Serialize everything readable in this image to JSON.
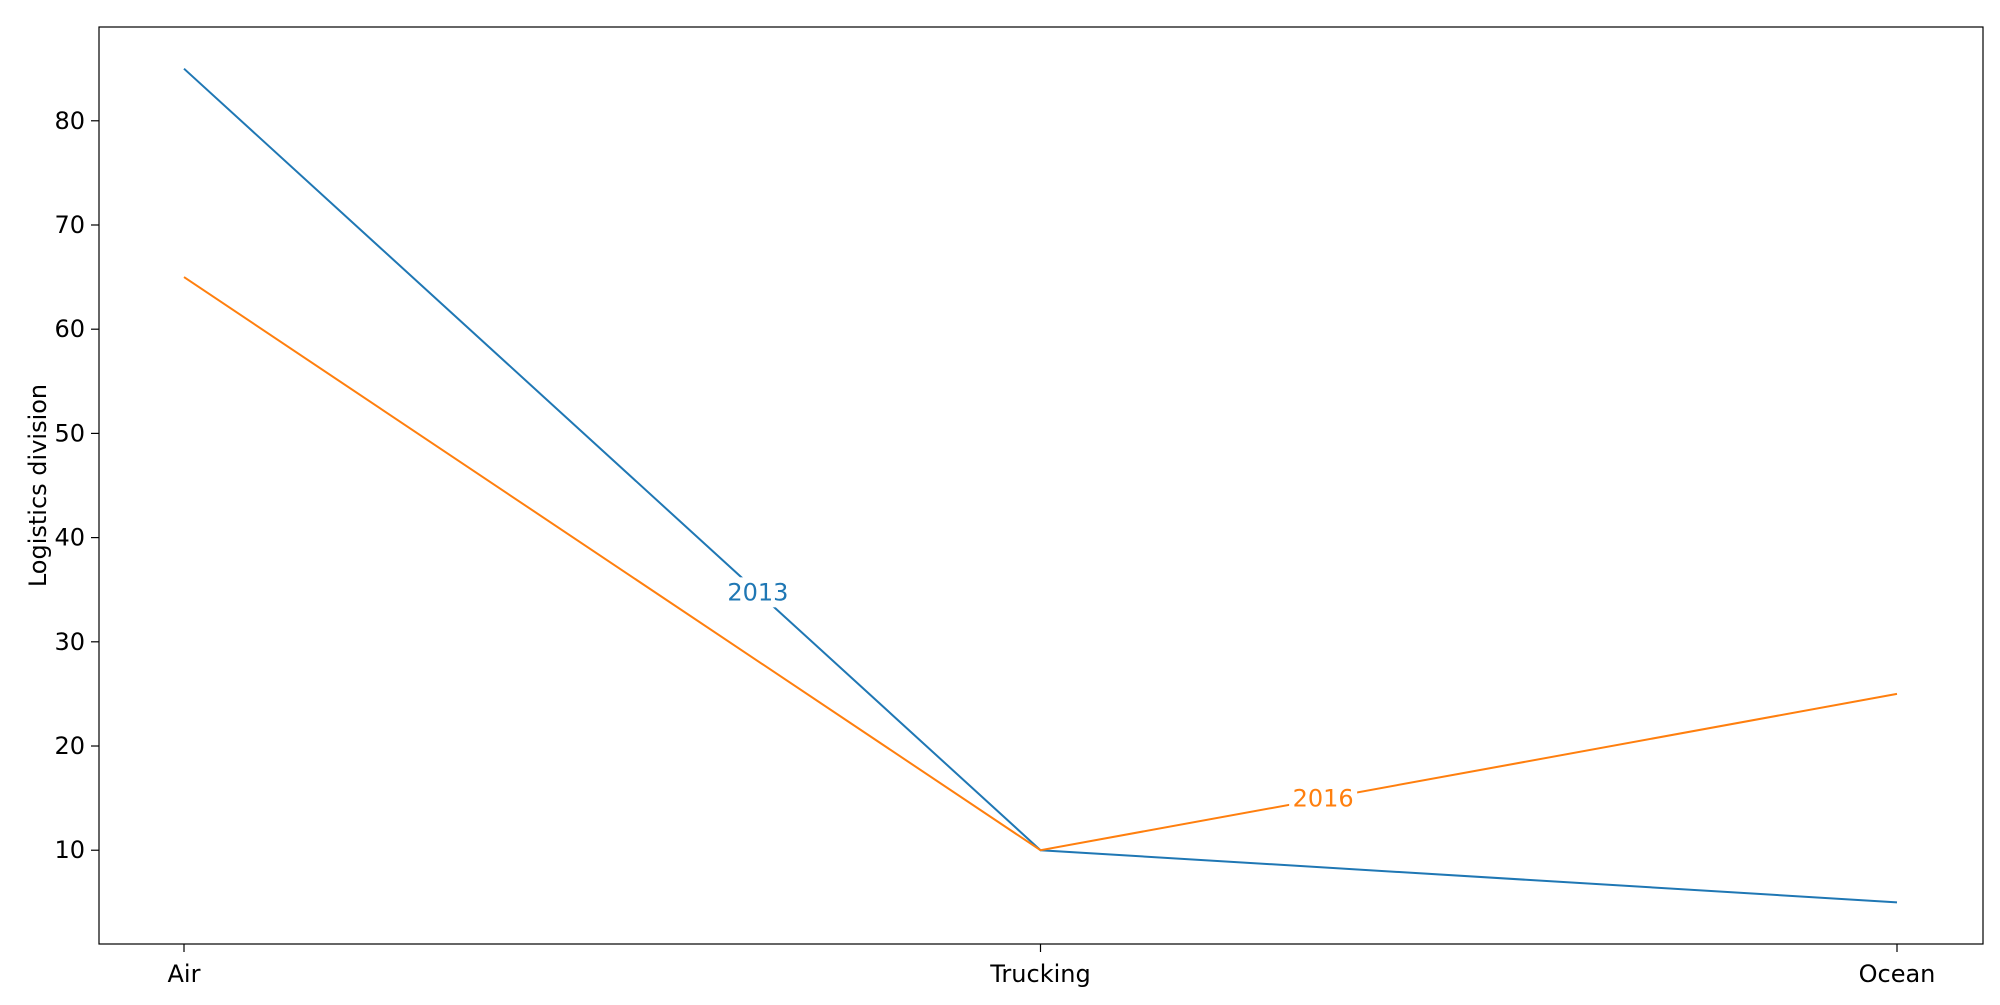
{
  "chart_data": {
    "type": "line",
    "categories": [
      "Air",
      "Trucking",
      "Ocean"
    ],
    "ylabel": "Logistics division",
    "xlabel": "",
    "title": "",
    "ylim": [
      1,
      89
    ],
    "yticks": [
      10,
      20,
      30,
      40,
      50,
      60,
      70,
      80
    ],
    "grid": false,
    "legend": "none",
    "series": [
      {
        "name": "2013",
        "color": "#1f77b4",
        "values": [
          85,
          10,
          5
        ],
        "label_at": {
          "segment": 0,
          "fraction": 0.67
        }
      },
      {
        "name": "2016",
        "color": "#ff7f0e",
        "values": [
          65,
          10,
          25
        ],
        "label_at": {
          "segment": 1,
          "fraction": 0.33
        }
      }
    ]
  }
}
